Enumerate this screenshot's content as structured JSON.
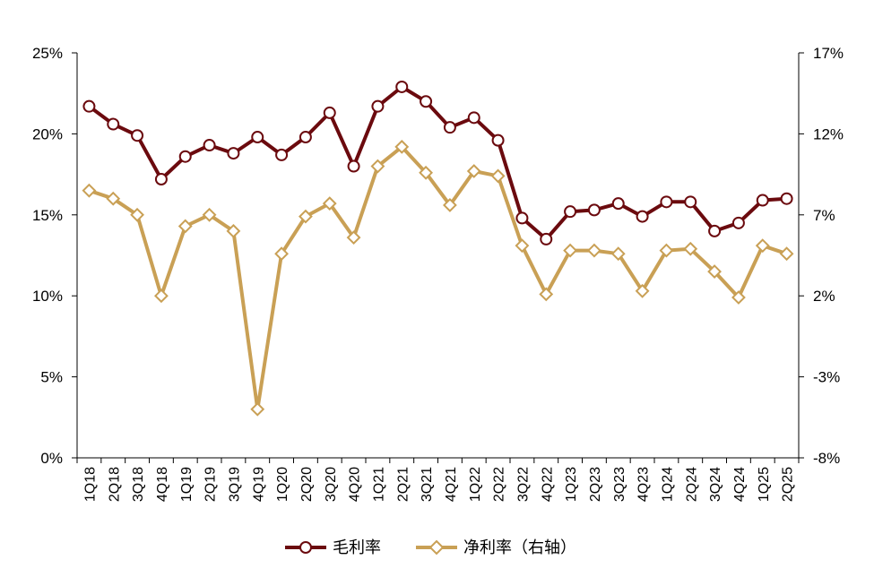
{
  "chart_data": {
    "type": "line",
    "categories": [
      "1Q18",
      "2Q18",
      "3Q18",
      "4Q18",
      "1Q19",
      "2Q19",
      "3Q19",
      "4Q19",
      "1Q20",
      "2Q20",
      "3Q20",
      "4Q20",
      "1Q21",
      "2Q21",
      "3Q21",
      "4Q21",
      "1Q22",
      "2Q22",
      "3Q22",
      "4Q22",
      "1Q23",
      "2Q23",
      "3Q23",
      "4Q23",
      "1Q24",
      "2Q24",
      "3Q24",
      "4Q24",
      "1Q25",
      "2Q25"
    ],
    "y_left": {
      "ticks": [
        "25%",
        "20%",
        "15%",
        "10%",
        "5%",
        "0%"
      ],
      "ylim": [
        0,
        25
      ]
    },
    "y_right": {
      "ticks": [
        "17%",
        "12%",
        "7%",
        "2%",
        "-3%",
        "-8%"
      ],
      "ylim": [
        -8,
        17
      ]
    },
    "series": [
      {
        "name": "毛利率",
        "axis": "left",
        "color": "#6b0a0e",
        "marker": "circle",
        "values": [
          21.7,
          20.6,
          19.9,
          17.2,
          18.6,
          19.3,
          18.8,
          19.8,
          18.7,
          19.8,
          21.3,
          18.0,
          21.7,
          22.9,
          22.0,
          20.4,
          21.0,
          19.6,
          14.8,
          13.5,
          15.2,
          15.3,
          15.7,
          14.9,
          15.8,
          15.8,
          14.0,
          14.5,
          15.9,
          16.0
        ]
      },
      {
        "name": "净利率（右轴）",
        "axis": "right",
        "color": "#c9a055",
        "marker": "diamond",
        "values": [
          8.5,
          8.0,
          7.0,
          2.0,
          6.3,
          7.0,
          6.0,
          -5.0,
          4.6,
          6.9,
          7.7,
          5.6,
          10.0,
          11.2,
          9.6,
          7.6,
          9.7,
          9.4,
          5.1,
          2.1,
          4.8,
          4.8,
          4.6,
          2.3,
          4.8,
          4.9,
          3.5,
          1.9,
          5.1,
          4.6
        ]
      }
    ]
  }
}
